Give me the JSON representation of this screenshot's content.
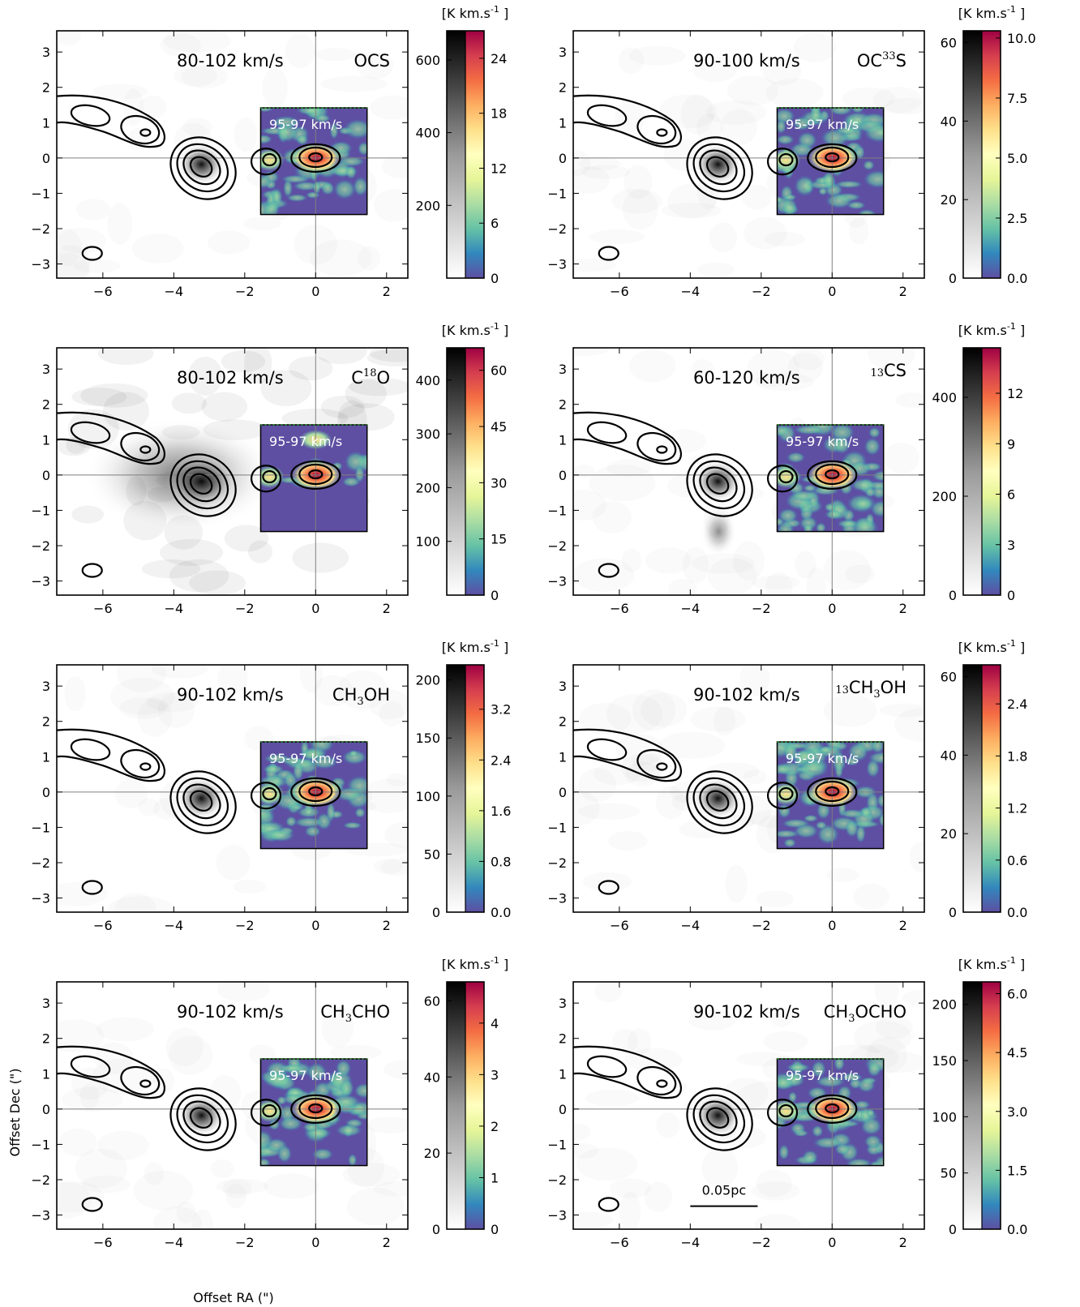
{
  "chart_data": [
    {
      "type": "heatmap",
      "velocity_range": "80-102 km/s",
      "molecule": {
        "pre": "",
        "main": [
          "OCS"
        ],
        "subs": []
      },
      "inset_label": "95-97 km/s",
      "colorbar_unit": "[K km.s$^{-1}$]",
      "xlim": [
        -7.3,
        2.6
      ],
      "ylim": [
        -3.4,
        3.6
      ],
      "xticks": [
        "−6",
        "−4",
        "−2",
        "0",
        "2"
      ],
      "yticks": [
        "−3",
        "−2",
        "−1",
        "0",
        "1",
        "2",
        "3"
      ],
      "gray_scale": {
        "max": 680,
        "ticks": [
          "200",
          "400",
          "600"
        ],
        "tick_values": [
          200,
          400,
          600
        ]
      },
      "color_scale": {
        "max": 27,
        "ticks": [
          "0",
          "6",
          "12",
          "18",
          "24"
        ],
        "tick_values": [
          0,
          6,
          12,
          18,
          24
        ]
      }
    },
    {
      "type": "heatmap",
      "velocity_range": "90-100 km/s",
      "molecule": {
        "pre": "",
        "main": [
          "OC",
          "S"
        ],
        "subs": [
          "33"
        ],
        "sup": true
      },
      "inset_label": "95-97 km/s",
      "colorbar_unit": "[K km.s$^{-1}$]",
      "xlim": [
        -7.3,
        2.6
      ],
      "ylim": [
        -3.4,
        3.6
      ],
      "xticks": [
        "−6",
        "−4",
        "−2",
        "0",
        "2"
      ],
      "yticks": [
        "−3",
        "−2",
        "−1",
        "0",
        "1",
        "2",
        "3"
      ],
      "gray_scale": {
        "max": 63,
        "ticks": [
          "0",
          "20",
          "40",
          "60"
        ],
        "tick_values": [
          0,
          20,
          40,
          60
        ]
      },
      "color_scale": {
        "max": 10.3,
        "ticks": [
          "0.0",
          "2.5",
          "5.0",
          "7.5",
          "10.0"
        ],
        "tick_values": [
          0,
          2.5,
          5.0,
          7.5,
          10.0
        ]
      }
    },
    {
      "type": "heatmap",
      "velocity_range": "80-102 km/s",
      "molecule": {
        "pre": "",
        "main": [
          "C",
          "O"
        ],
        "subs": [
          "18"
        ],
        "sup": true
      },
      "inset_label": "95-97 km/s",
      "colorbar_unit": "[K km.s$^{-1}$]",
      "xlim": [
        -7.3,
        2.6
      ],
      "ylim": [
        -3.4,
        3.6
      ],
      "xticks": [
        "−6",
        "−4",
        "−2",
        "0",
        "2"
      ],
      "yticks": [
        "−3",
        "−2",
        "−1",
        "0",
        "1",
        "2",
        "3"
      ],
      "gray_scale": {
        "max": 460,
        "ticks": [
          "100",
          "200",
          "300",
          "400"
        ],
        "tick_values": [
          100,
          200,
          300,
          400
        ]
      },
      "color_scale": {
        "max": 66,
        "ticks": [
          "0",
          "15",
          "30",
          "45",
          "60"
        ],
        "tick_values": [
          0,
          15,
          30,
          45,
          60
        ]
      }
    },
    {
      "type": "heatmap",
      "velocity_range": "60-120 km/s",
      "molecule": {
        "pre": "13",
        "main": [
          "CS"
        ],
        "subs": []
      },
      "inset_label": "95-97 km/s",
      "colorbar_unit": "[K km.s$^{-1}$]",
      "xlim": [
        -7.3,
        2.6
      ],
      "ylim": [
        -3.4,
        3.6
      ],
      "xticks": [
        "−6",
        "−4",
        "−2",
        "0",
        "2"
      ],
      "yticks": [
        "−3",
        "−2",
        "−1",
        "0",
        "1",
        "2",
        "3"
      ],
      "gray_scale": {
        "max": 500,
        "ticks": [
          "0",
          "200",
          "400"
        ],
        "tick_values": [
          0,
          200,
          400
        ]
      },
      "color_scale": {
        "max": 14.7,
        "ticks": [
          "0",
          "3",
          "6",
          "9",
          "12"
        ],
        "tick_values": [
          0,
          3,
          6,
          9,
          12
        ]
      }
    },
    {
      "type": "heatmap",
      "velocity_range": "90-102 km/s",
      "molecule": {
        "pre": "",
        "main": [
          "CH",
          "OH"
        ],
        "subs": [
          "3"
        ]
      },
      "inset_label": "95-97 km/s",
      "colorbar_unit": "[K km.s$^{-1}$]",
      "xlim": [
        -7.3,
        2.6
      ],
      "ylim": [
        -3.4,
        3.6
      ],
      "xticks": [
        "−6",
        "−4",
        "−2",
        "0",
        "2"
      ],
      "yticks": [
        "−3",
        "−2",
        "−1",
        "0",
        "1",
        "2",
        "3"
      ],
      "gray_scale": {
        "max": 213,
        "ticks": [
          "0",
          "50",
          "100",
          "150",
          "200"
        ],
        "tick_values": [
          0,
          50,
          100,
          150,
          200
        ]
      },
      "color_scale": {
        "max": 3.9,
        "ticks": [
          "0.0",
          "0.8",
          "1.6",
          "2.4",
          "3.2"
        ],
        "tick_values": [
          0,
          0.8,
          1.6,
          2.4,
          3.2
        ]
      }
    },
    {
      "type": "heatmap",
      "velocity_range": "90-102 km/s",
      "molecule": {
        "pre": "13",
        "main": [
          "CH",
          "OH"
        ],
        "subs": [
          "3"
        ]
      },
      "inset_label": "95-97 km/s",
      "colorbar_unit": "[K km.s$^{-1}$]",
      "xlim": [
        -7.3,
        2.6
      ],
      "ylim": [
        -3.4,
        3.6
      ],
      "xticks": [
        "−6",
        "−4",
        "−2",
        "0",
        "2"
      ],
      "yticks": [
        "−3",
        "−2",
        "−1",
        "0",
        "1",
        "2",
        "3"
      ],
      "gray_scale": {
        "max": 63,
        "ticks": [
          "0",
          "20",
          "40",
          "60"
        ],
        "tick_values": [
          0,
          20,
          40,
          60
        ]
      },
      "color_scale": {
        "max": 2.85,
        "ticks": [
          "0.0",
          "0.6",
          "1.2",
          "1.8",
          "2.4"
        ],
        "tick_values": [
          0,
          0.6,
          1.2,
          1.8,
          2.4
        ]
      }
    },
    {
      "type": "heatmap",
      "velocity_range": "90-102 km/s",
      "molecule": {
        "pre": "",
        "main": [
          "CH",
          "CHO"
        ],
        "subs": [
          "3"
        ]
      },
      "inset_label": "95-97 km/s",
      "colorbar_unit": "[K km.s$^{-1}$]",
      "xlim": [
        -7.3,
        2.6
      ],
      "ylim": [
        -3.4,
        3.6
      ],
      "xticks": [
        "−6",
        "−4",
        "−2",
        "0",
        "2"
      ],
      "yticks": [
        "−3",
        "−2",
        "−1",
        "0",
        "1",
        "2",
        "3"
      ],
      "gray_scale": {
        "max": 65,
        "ticks": [
          "0",
          "20",
          "40",
          "60"
        ],
        "tick_values": [
          0,
          20,
          40,
          60
        ]
      },
      "color_scale": {
        "max": 4.8,
        "ticks": [
          "0",
          "1",
          "2",
          "3",
          "4"
        ],
        "tick_values": [
          0,
          1,
          2,
          3,
          4
        ]
      }
    },
    {
      "type": "heatmap",
      "velocity_range": "90-102 km/s",
      "molecule": {
        "pre": "",
        "main": [
          "CH",
          "OCHO"
        ],
        "subs": [
          "3"
        ]
      },
      "inset_label": "95-97 km/s",
      "colorbar_unit": "[K km.s$^{-1}$]",
      "xlim": [
        -7.3,
        2.6
      ],
      "ylim": [
        -3.4,
        3.6
      ],
      "xticks": [
        "−6",
        "−4",
        "−2",
        "0",
        "2"
      ],
      "yticks": [
        "−3",
        "−2",
        "−1",
        "0",
        "1",
        "2",
        "3"
      ],
      "gray_scale": {
        "max": 220,
        "ticks": [
          "0",
          "50",
          "100",
          "150",
          "200"
        ],
        "tick_values": [
          0,
          50,
          100,
          150,
          200
        ]
      },
      "color_scale": {
        "max": 6.3,
        "ticks": [
          "0.0",
          "1.5",
          "3.0",
          "4.5",
          "6.0"
        ],
        "tick_values": [
          0,
          1.5,
          3.0,
          4.5,
          6.0
        ]
      },
      "scale_bar": {
        "label": "0.05pc",
        "x_start": -4.0,
        "x_end": -2.1
      }
    }
  ],
  "shared_xlabel": "Offset RA (\")",
  "shared_ylabel": "Offset Dec (\")",
  "inset_region": {
    "x": [
      -1.55,
      1.45
    ],
    "y": [
      -1.6,
      1.42
    ]
  },
  "colors": {
    "background": "#ffffff",
    "inset_blue": "#5e4fa2",
    "contour": "#000000"
  }
}
